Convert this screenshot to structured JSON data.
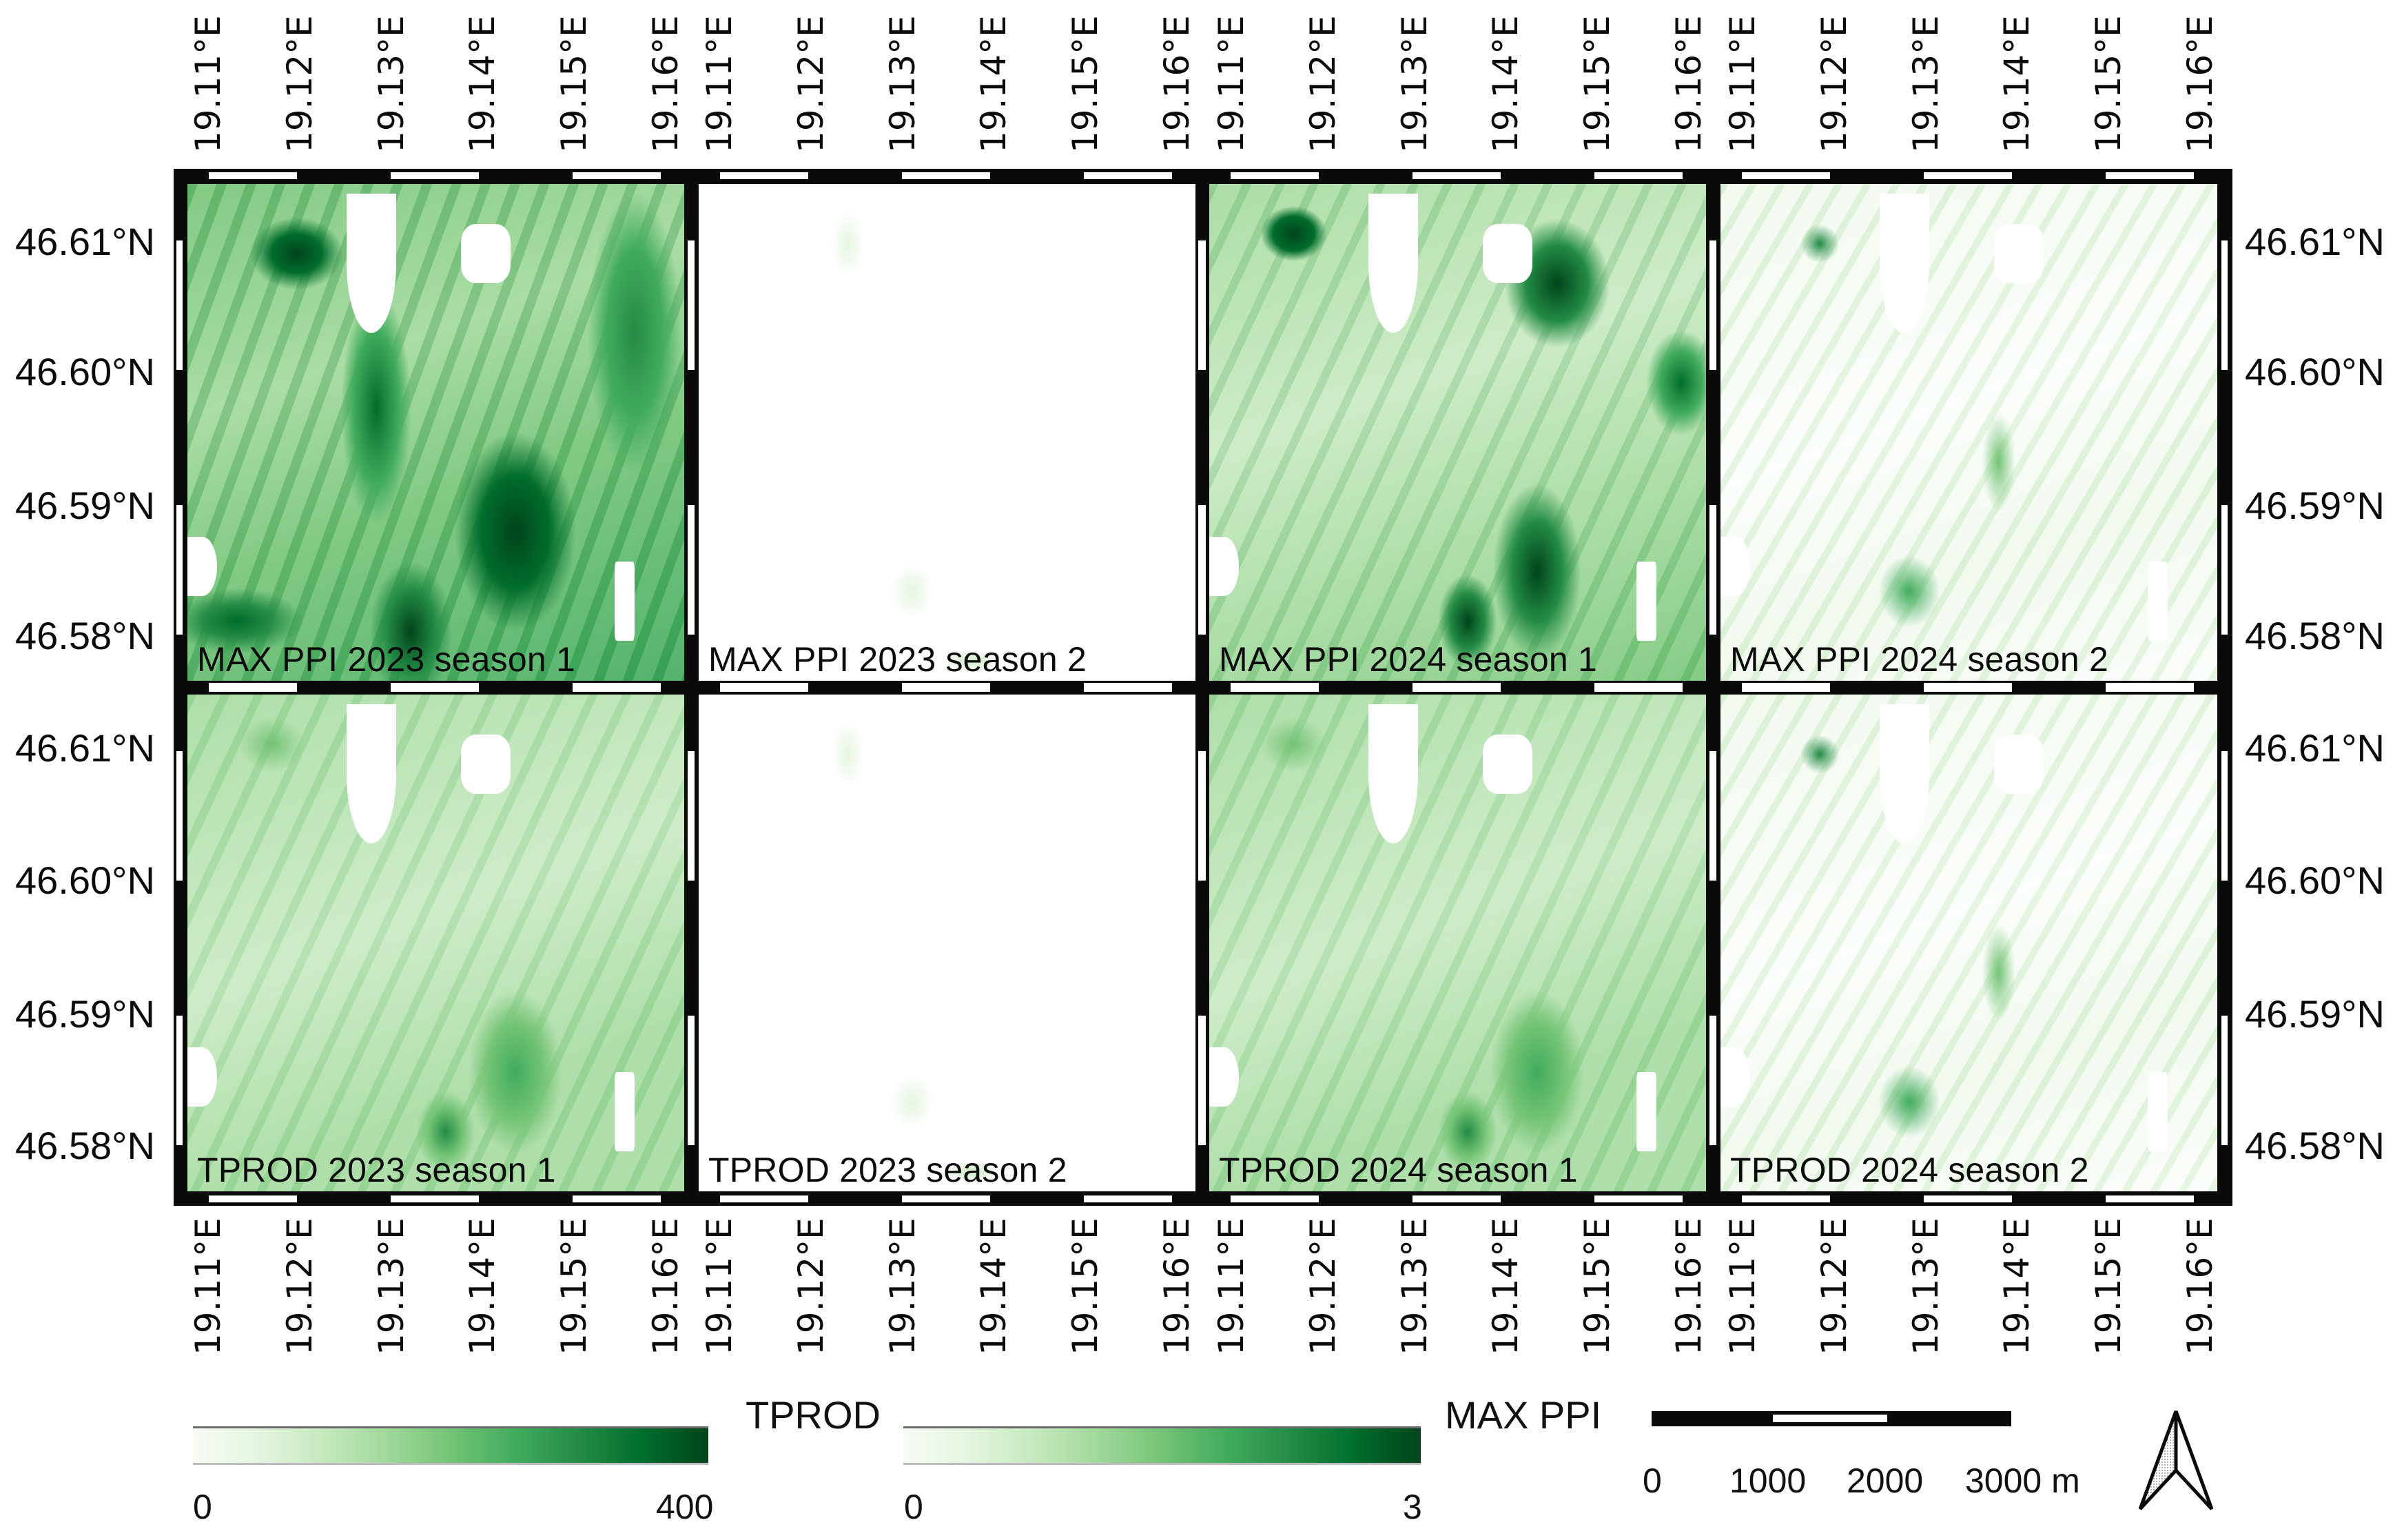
{
  "figure": {
    "type": "map-grid",
    "rows": 2,
    "cols": 4
  },
  "panels": [
    {
      "label": "MAX PPI 2023 season 1",
      "variable": "MAX PPI",
      "year": "2023",
      "season": "1",
      "intensity": "high"
    },
    {
      "label": "MAX PPI 2023 season 2",
      "variable": "MAX PPI",
      "year": "2023",
      "season": "2",
      "intensity": "near-zero"
    },
    {
      "label": "MAX PPI 2024 season 1",
      "variable": "MAX PPI",
      "year": "2024",
      "season": "1",
      "intensity": "medium-high"
    },
    {
      "label": "MAX PPI 2024 season 2",
      "variable": "MAX PPI",
      "year": "2024",
      "season": "2",
      "intensity": "low"
    },
    {
      "label": "TPROD 2023 season 1",
      "variable": "TPROD",
      "year": "2023",
      "season": "1",
      "intensity": "medium"
    },
    {
      "label": "TPROD 2023 season 2",
      "variable": "TPROD",
      "year": "2023",
      "season": "2",
      "intensity": "near-zero"
    },
    {
      "label": "TPROD 2024 season 1",
      "variable": "TPROD",
      "year": "2024",
      "season": "1",
      "intensity": "medium"
    },
    {
      "label": "TPROD 2024 season 2",
      "variable": "TPROD",
      "year": "2024",
      "season": "2",
      "intensity": "low"
    }
  ],
  "axes": {
    "longitude_ticks": [
      "19.11°E",
      "19.12°E",
      "19.13°E",
      "19.14°E",
      "19.15°E",
      "19.16°E"
    ],
    "latitude_ticks": [
      "46.61°N",
      "46.60°N",
      "46.59°N",
      "46.58°N"
    ]
  },
  "legends": {
    "tprod": {
      "title": "TPROD",
      "min": "0",
      "max": "400"
    },
    "maxppi": {
      "title": "MAX PPI",
      "min": "0",
      "max": "3"
    },
    "colormap": [
      "#f7fcf5",
      "#e5f5e0",
      "#c7e9c0",
      "#a1d99b",
      "#74c476",
      "#41ab5d",
      "#238b45",
      "#006d2c",
      "#00441b"
    ]
  },
  "scalebar": {
    "labels": [
      "0",
      "1000",
      "2000",
      "3000 m"
    ]
  },
  "north_arrow": {
    "icon": "north-arrow-icon"
  }
}
